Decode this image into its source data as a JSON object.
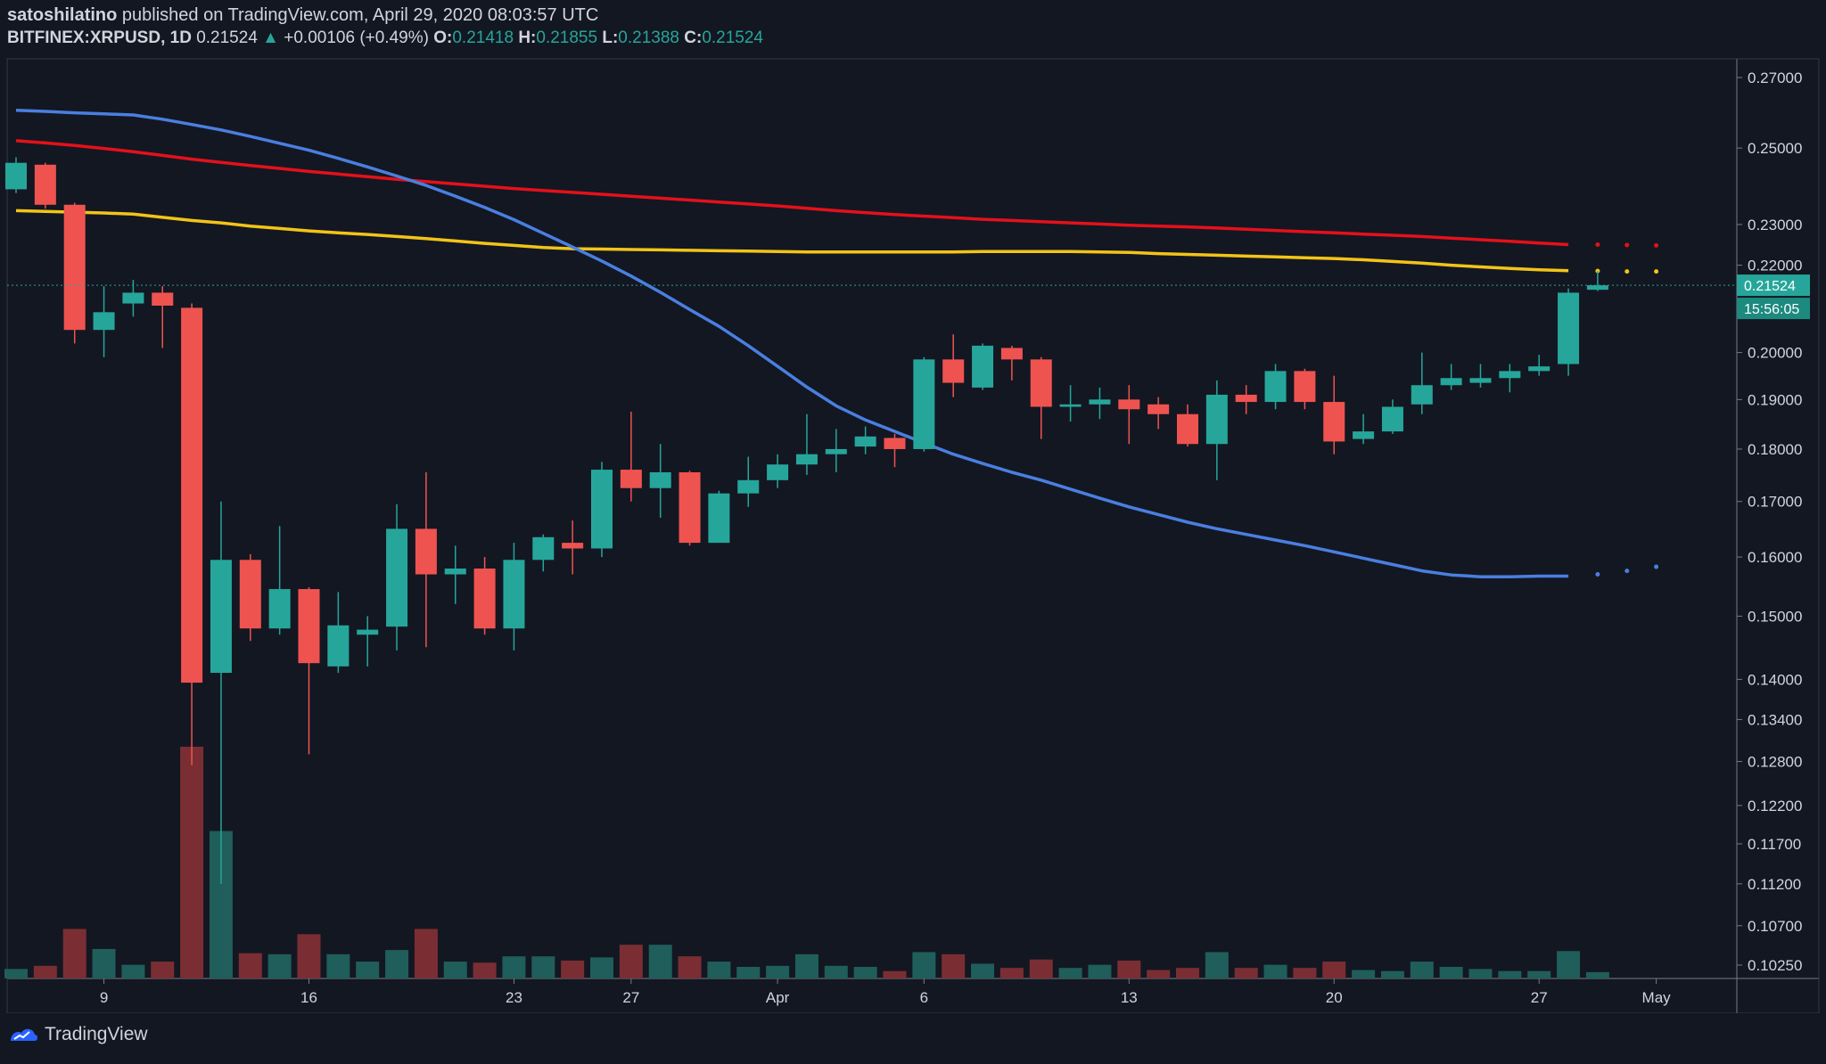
{
  "header": {
    "author": "satoshilatino",
    "published_text": "published on TradingView.com, April 29, 2020 08:03:57 UTC",
    "symbol": "BITFINEX:XRPUSD, 1D",
    "last": "0.21524",
    "change": "+0.00106 (+0.49%)",
    "o_label": "O:",
    "o": "0.21418",
    "h_label": "H:",
    "h": "0.21855",
    "l_label": "L:",
    "l": "0.21388",
    "c_label": "C:",
    "c": "0.21524"
  },
  "price_tag": "0.21524",
  "countdown": "15:56:05",
  "footer": {
    "brand": "TradingView"
  },
  "colors": {
    "up": "#26a69a",
    "down": "#ef5350",
    "ma_red": "#e3111a",
    "ma_yellow": "#f2c418",
    "ma_blue": "#4a7fe0",
    "bg": "#131722",
    "axis_text": "#d1d4dc"
  },
  "chart_data": {
    "type": "candlestick",
    "y_scale": "log",
    "y_ticks": [
      "0.27000",
      "0.25000",
      "0.23000",
      "0.22000",
      "0.20000",
      "0.19000",
      "0.18000",
      "0.17000",
      "0.16000",
      "0.15000",
      "0.14000",
      "0.13400",
      "0.12800",
      "0.12200",
      "0.11700",
      "0.11200",
      "0.10700",
      "0.10250"
    ],
    "x_ticks": [
      {
        "label": "9",
        "index": 3
      },
      {
        "label": "16",
        "index": 10
      },
      {
        "label": "23",
        "index": 17
      },
      {
        "label": "27",
        "index": 21
      },
      {
        "label": "Apr",
        "index": 26
      },
      {
        "label": "6",
        "index": 31
      },
      {
        "label": "13",
        "index": 38
      },
      {
        "label": "20",
        "index": 45
      },
      {
        "label": "27",
        "index": 52
      },
      {
        "label": "May",
        "index": 56
      }
    ],
    "candles": [
      {
        "o": 0.239,
        "h": 0.2475,
        "l": 0.238,
        "c": 0.246
      },
      {
        "o": 0.2455,
        "h": 0.246,
        "l": 0.234,
        "c": 0.235
      },
      {
        "o": 0.235,
        "h": 0.2355,
        "l": 0.202,
        "c": 0.205
      },
      {
        "o": 0.205,
        "h": 0.215,
        "l": 0.199,
        "c": 0.209
      },
      {
        "o": 0.211,
        "h": 0.2165,
        "l": 0.208,
        "c": 0.2135
      },
      {
        "o": 0.2135,
        "h": 0.215,
        "l": 0.201,
        "c": 0.2105
      },
      {
        "o": 0.21,
        "h": 0.211,
        "l": 0.1275,
        "c": 0.1395
      },
      {
        "o": 0.141,
        "h": 0.17,
        "l": 0.112,
        "c": 0.1595
      },
      {
        "o": 0.1595,
        "h": 0.1605,
        "l": 0.146,
        "c": 0.148
      },
      {
        "o": 0.148,
        "h": 0.1655,
        "l": 0.147,
        "c": 0.1545
      },
      {
        "o": 0.1545,
        "h": 0.1548,
        "l": 0.129,
        "c": 0.1425
      },
      {
        "o": 0.142,
        "h": 0.154,
        "l": 0.141,
        "c": 0.1485
      },
      {
        "o": 0.147,
        "h": 0.15,
        "l": 0.142,
        "c": 0.1478
      },
      {
        "o": 0.1483,
        "h": 0.1695,
        "l": 0.1445,
        "c": 0.165
      },
      {
        "o": 0.165,
        "h": 0.1755,
        "l": 0.145,
        "c": 0.157
      },
      {
        "o": 0.157,
        "h": 0.162,
        "l": 0.152,
        "c": 0.158
      },
      {
        "o": 0.158,
        "h": 0.16,
        "l": 0.147,
        "c": 0.148
      },
      {
        "o": 0.148,
        "h": 0.1625,
        "l": 0.1445,
        "c": 0.1595
      },
      {
        "o": 0.1595,
        "h": 0.164,
        "l": 0.1575,
        "c": 0.1635
      },
      {
        "o": 0.1625,
        "h": 0.1665,
        "l": 0.157,
        "c": 0.1615
      },
      {
        "o": 0.1615,
        "h": 0.1775,
        "l": 0.16,
        "c": 0.176
      },
      {
        "o": 0.176,
        "h": 0.1875,
        "l": 0.17,
        "c": 0.1725
      },
      {
        "o": 0.1725,
        "h": 0.181,
        "l": 0.167,
        "c": 0.1755
      },
      {
        "o": 0.1755,
        "h": 0.1758,
        "l": 0.162,
        "c": 0.1625
      },
      {
        "o": 0.1625,
        "h": 0.172,
        "l": 0.1625,
        "c": 0.1715
      },
      {
        "o": 0.1715,
        "h": 0.1785,
        "l": 0.169,
        "c": 0.174
      },
      {
        "o": 0.174,
        "h": 0.179,
        "l": 0.1725,
        "c": 0.177
      },
      {
        "o": 0.177,
        "h": 0.187,
        "l": 0.175,
        "c": 0.179
      },
      {
        "o": 0.179,
        "h": 0.184,
        "l": 0.1755,
        "c": 0.18
      },
      {
        "o": 0.1805,
        "h": 0.1845,
        "l": 0.179,
        "c": 0.1825
      },
      {
        "o": 0.1822,
        "h": 0.183,
        "l": 0.1765,
        "c": 0.18
      },
      {
        "o": 0.18,
        "h": 0.199,
        "l": 0.1795,
        "c": 0.1985
      },
      {
        "o": 0.1985,
        "h": 0.204,
        "l": 0.1905,
        "c": 0.1935
      },
      {
        "o": 0.1925,
        "h": 0.202,
        "l": 0.192,
        "c": 0.2015
      },
      {
        "o": 0.201,
        "h": 0.2015,
        "l": 0.194,
        "c": 0.1985
      },
      {
        "o": 0.1985,
        "h": 0.199,
        "l": 0.182,
        "c": 0.1885
      },
      {
        "o": 0.1885,
        "h": 0.193,
        "l": 0.1855,
        "c": 0.189
      },
      {
        "o": 0.189,
        "h": 0.1925,
        "l": 0.186,
        "c": 0.19
      },
      {
        "o": 0.19,
        "h": 0.193,
        "l": 0.181,
        "c": 0.188
      },
      {
        "o": 0.189,
        "h": 0.1905,
        "l": 0.184,
        "c": 0.187
      },
      {
        "o": 0.187,
        "h": 0.189,
        "l": 0.1805,
        "c": 0.181
      },
      {
        "o": 0.181,
        "h": 0.194,
        "l": 0.174,
        "c": 0.191
      },
      {
        "o": 0.191,
        "h": 0.193,
        "l": 0.187,
        "c": 0.1895
      },
      {
        "o": 0.1895,
        "h": 0.1975,
        "l": 0.188,
        "c": 0.196
      },
      {
        "o": 0.196,
        "h": 0.1965,
        "l": 0.188,
        "c": 0.1895
      },
      {
        "o": 0.1895,
        "h": 0.195,
        "l": 0.179,
        "c": 0.1815
      },
      {
        "o": 0.182,
        "h": 0.187,
        "l": 0.181,
        "c": 0.1835
      },
      {
        "o": 0.1835,
        "h": 0.19,
        "l": 0.183,
        "c": 0.1885
      },
      {
        "o": 0.189,
        "h": 0.2,
        "l": 0.187,
        "c": 0.193
      },
      {
        "o": 0.193,
        "h": 0.1975,
        "l": 0.192,
        "c": 0.1945
      },
      {
        "o": 0.1935,
        "h": 0.1975,
        "l": 0.1925,
        "c": 0.1945
      },
      {
        "o": 0.1945,
        "h": 0.1975,
        "l": 0.1915,
        "c": 0.196
      },
      {
        "o": 0.196,
        "h": 0.1995,
        "l": 0.195,
        "c": 0.197
      },
      {
        "o": 0.1975,
        "h": 0.2145,
        "l": 0.195,
        "c": 0.2135
      },
      {
        "o": 0.21418,
        "h": 0.21855,
        "l": 0.21388,
        "c": 0.21524
      }
    ],
    "volume": [
      {
        "v": 0.9,
        "up": true
      },
      {
        "v": 1.2,
        "up": false
      },
      {
        "v": 4.7,
        "up": false
      },
      {
        "v": 2.8,
        "up": true
      },
      {
        "v": 1.3,
        "up": true
      },
      {
        "v": 1.6,
        "up": false
      },
      {
        "v": 22,
        "up": false
      },
      {
        "v": 14,
        "up": true
      },
      {
        "v": 2.4,
        "up": false
      },
      {
        "v": 2.3,
        "up": true
      },
      {
        "v": 4.2,
        "up": false
      },
      {
        "v": 2.3,
        "up": true
      },
      {
        "v": 1.6,
        "up": true
      },
      {
        "v": 2.7,
        "up": true
      },
      {
        "v": 4.7,
        "up": false
      },
      {
        "v": 1.6,
        "up": true
      },
      {
        "v": 1.5,
        "up": false
      },
      {
        "v": 2.1,
        "up": true
      },
      {
        "v": 2.1,
        "up": true
      },
      {
        "v": 1.7,
        "up": false
      },
      {
        "v": 2.0,
        "up": true
      },
      {
        "v": 3.2,
        "up": false
      },
      {
        "v": 3.2,
        "up": true
      },
      {
        "v": 2.1,
        "up": false
      },
      {
        "v": 1.6,
        "up": true
      },
      {
        "v": 1.1,
        "up": true
      },
      {
        "v": 1.2,
        "up": true
      },
      {
        "v": 2.3,
        "up": true
      },
      {
        "v": 1.2,
        "up": true
      },
      {
        "v": 1.1,
        "up": true
      },
      {
        "v": 0.7,
        "up": false
      },
      {
        "v": 2.5,
        "up": true
      },
      {
        "v": 2.3,
        "up": false
      },
      {
        "v": 1.4,
        "up": true
      },
      {
        "v": 1.0,
        "up": false
      },
      {
        "v": 1.8,
        "up": false
      },
      {
        "v": 1.0,
        "up": true
      },
      {
        "v": 1.3,
        "up": true
      },
      {
        "v": 1.7,
        "up": false
      },
      {
        "v": 0.8,
        "up": false
      },
      {
        "v": 1.0,
        "up": false
      },
      {
        "v": 2.5,
        "up": true
      },
      {
        "v": 1.0,
        "up": false
      },
      {
        "v": 1.3,
        "up": true
      },
      {
        "v": 1.0,
        "up": false
      },
      {
        "v": 1.6,
        "up": false
      },
      {
        "v": 0.8,
        "up": true
      },
      {
        "v": 0.7,
        "up": true
      },
      {
        "v": 1.6,
        "up": true
      },
      {
        "v": 1.1,
        "up": true
      },
      {
        "v": 0.9,
        "up": true
      },
      {
        "v": 0.7,
        "up": true
      },
      {
        "v": 0.7,
        "up": true
      },
      {
        "v": 2.6,
        "up": true
      },
      {
        "v": 0.6,
        "up": true
      }
    ],
    "moving_averages": [
      {
        "color": "#e3111a",
        "values": [
          0.252,
          0.2514,
          0.2507,
          0.2499,
          0.249,
          0.248,
          0.247,
          0.2461,
          0.2453,
          0.2445,
          0.2437,
          0.243,
          0.2423,
          0.2416,
          0.241,
          0.2404,
          0.2398,
          0.2392,
          0.2387,
          0.2382,
          0.2377,
          0.2372,
          0.2367,
          0.2362,
          0.2357,
          0.2352,
          0.2347,
          0.2341,
          0.2335,
          0.233,
          0.2325,
          0.2321,
          0.2317,
          0.2313,
          0.231,
          0.2307,
          0.2304,
          0.2301,
          0.2298,
          0.2296,
          0.2294,
          0.2291,
          0.2288,
          0.2285,
          0.2282,
          0.2279,
          0.2276,
          0.2273,
          0.227,
          0.2266,
          0.2262,
          0.2258,
          0.2254,
          0.225
        ],
        "projection": [
          0.225,
          0.2249,
          0.2248
        ]
      },
      {
        "color": "#f2c418",
        "values": [
          0.2335,
          0.2333,
          0.2331,
          0.2329,
          0.2326,
          0.2318,
          0.231,
          0.2304,
          0.2296,
          0.229,
          0.2284,
          0.2279,
          0.2275,
          0.227,
          0.2265,
          0.2259,
          0.2253,
          0.2248,
          0.2243,
          0.224,
          0.2239,
          0.2238,
          0.2237,
          0.2236,
          0.2235,
          0.2234,
          0.2233,
          0.2232,
          0.2232,
          0.2232,
          0.2232,
          0.2232,
          0.2232,
          0.2233,
          0.2233,
          0.2233,
          0.2233,
          0.2232,
          0.2231,
          0.2228,
          0.2226,
          0.2224,
          0.2222,
          0.222,
          0.2218,
          0.2216,
          0.2213,
          0.2209,
          0.2205,
          0.22,
          0.2196,
          0.2192,
          0.2189,
          0.2187
        ],
        "projection": [
          0.2186,
          0.2185,
          0.2185
        ]
      },
      {
        "color": "#4a7fe0",
        "values": [
          0.2605,
          0.2602,
          0.2598,
          0.2595,
          0.2592,
          0.258,
          0.2565,
          0.255,
          0.2532,
          0.2513,
          0.2494,
          0.2472,
          0.2449,
          0.2425,
          0.24,
          0.2372,
          0.2343,
          0.2312,
          0.2278,
          0.2244,
          0.221,
          0.2174,
          0.2136,
          0.2096,
          0.2058,
          0.2015,
          0.197,
          0.1926,
          0.1887,
          0.1858,
          0.1835,
          0.1812,
          0.179,
          0.1772,
          0.1755,
          0.174,
          0.1723,
          0.1706,
          0.169,
          0.1676,
          0.1662,
          0.165,
          0.164,
          0.163,
          0.162,
          0.1609,
          0.1598,
          0.1587,
          0.1576,
          0.1569,
          0.1566,
          0.1566,
          0.1567,
          0.1567
        ],
        "projection": [
          0.157,
          0.1576,
          0.1583
        ]
      }
    ]
  }
}
